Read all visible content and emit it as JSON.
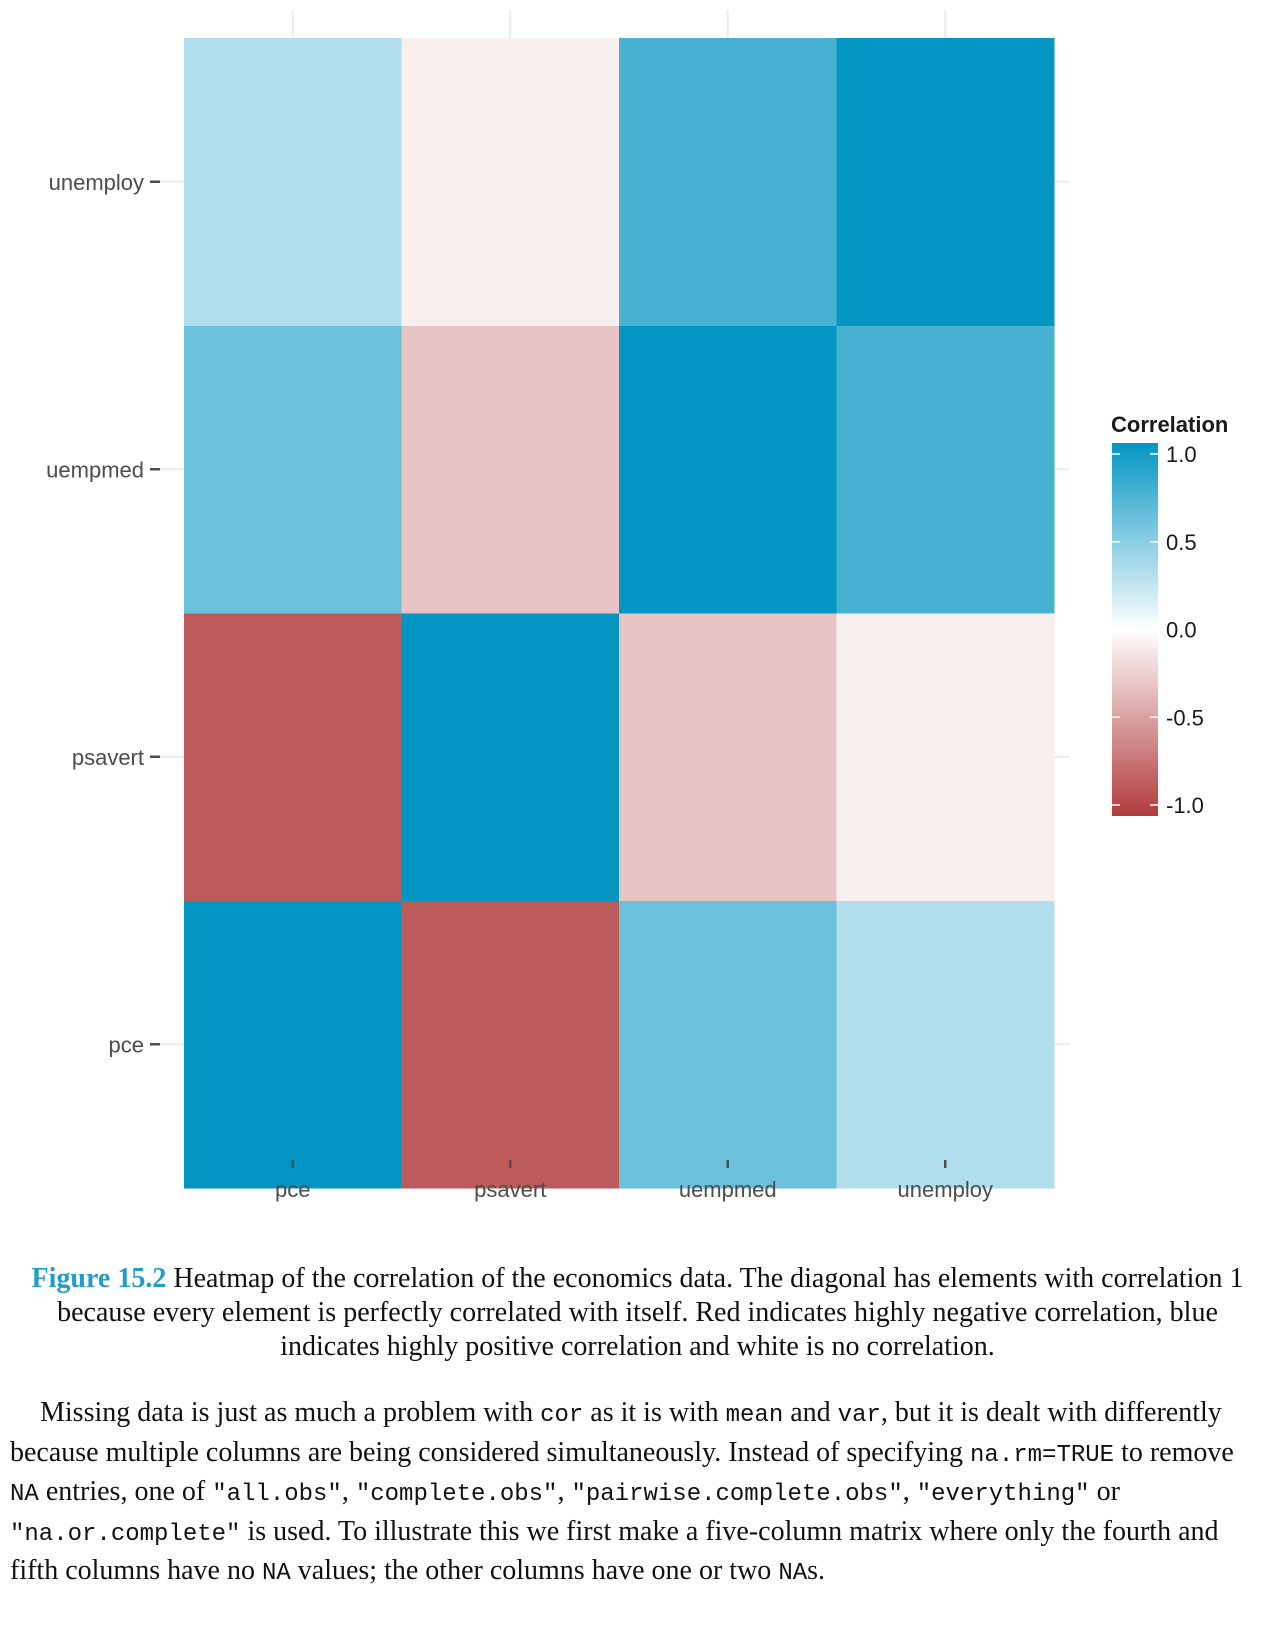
{
  "chart_data": {
    "type": "heatmap",
    "x_categories": [
      "pce",
      "psavert",
      "uempmed",
      "unemploy"
    ],
    "y_categories": [
      "pce",
      "psavert",
      "uempmed",
      "unemploy"
    ],
    "values": [
      [
        1.0,
        -0.84,
        0.59,
        0.31
      ],
      [
        -0.84,
        1.0,
        -0.3,
        -0.08
      ],
      [
        0.59,
        -0.3,
        1.0,
        0.73
      ],
      [
        0.31,
        -0.08,
        0.73,
        1.0
      ]
    ],
    "legend": {
      "title": "Correlation",
      "ticks": [
        "1.0",
        "0.5",
        "0.0",
        "-0.5",
        "-1.0"
      ],
      "tick_values": [
        1.0,
        0.5,
        0.0,
        -0.5,
        -1.0
      ],
      "placement": "right"
    },
    "colors": {
      "high": "#0496c3",
      "mid": "#ffffff",
      "low": "#b13b3b"
    },
    "zlim": [
      -1,
      1
    ],
    "grid": true
  },
  "caption": {
    "label": "Figure 15.2",
    "text": " Heatmap of the correlation of the economics data. The diagonal has elements with correlation 1 because every element is perfectly correlated with itself. Red indicates highly negative correlation, blue indicates highly positive correlation and white is no correlation."
  },
  "paragraph": {
    "t1": "Missing data is just as much a problem with ",
    "c1": "cor",
    "t2": " as it is with ",
    "c2": "mean",
    "t3": " and ",
    "c3": "var",
    "t4": ", but it is dealt with differently because multiple columns are being considered simultaneously. Instead of specifying ",
    "c4": "na.rm=TRUE",
    "t5": " to remove ",
    "c5": "NA",
    "t6": " entries, one of ",
    "c6": "\"all.obs\"",
    "t7": ", ",
    "c7": "\"complete.obs\"",
    "t8": ", ",
    "c8": "\"pairwise.complete.obs\"",
    "t9": ", ",
    "c9": "\"everything\"",
    "t10": " or ",
    "c10": "\"na.or.complete\"",
    "t11": " is used. To illustrate this we first make a five-column matrix where only the fourth and fifth columns have no ",
    "c11": "NA",
    "t12": " values; the other columns have one or two ",
    "c12": "NA",
    "t13": "s."
  }
}
